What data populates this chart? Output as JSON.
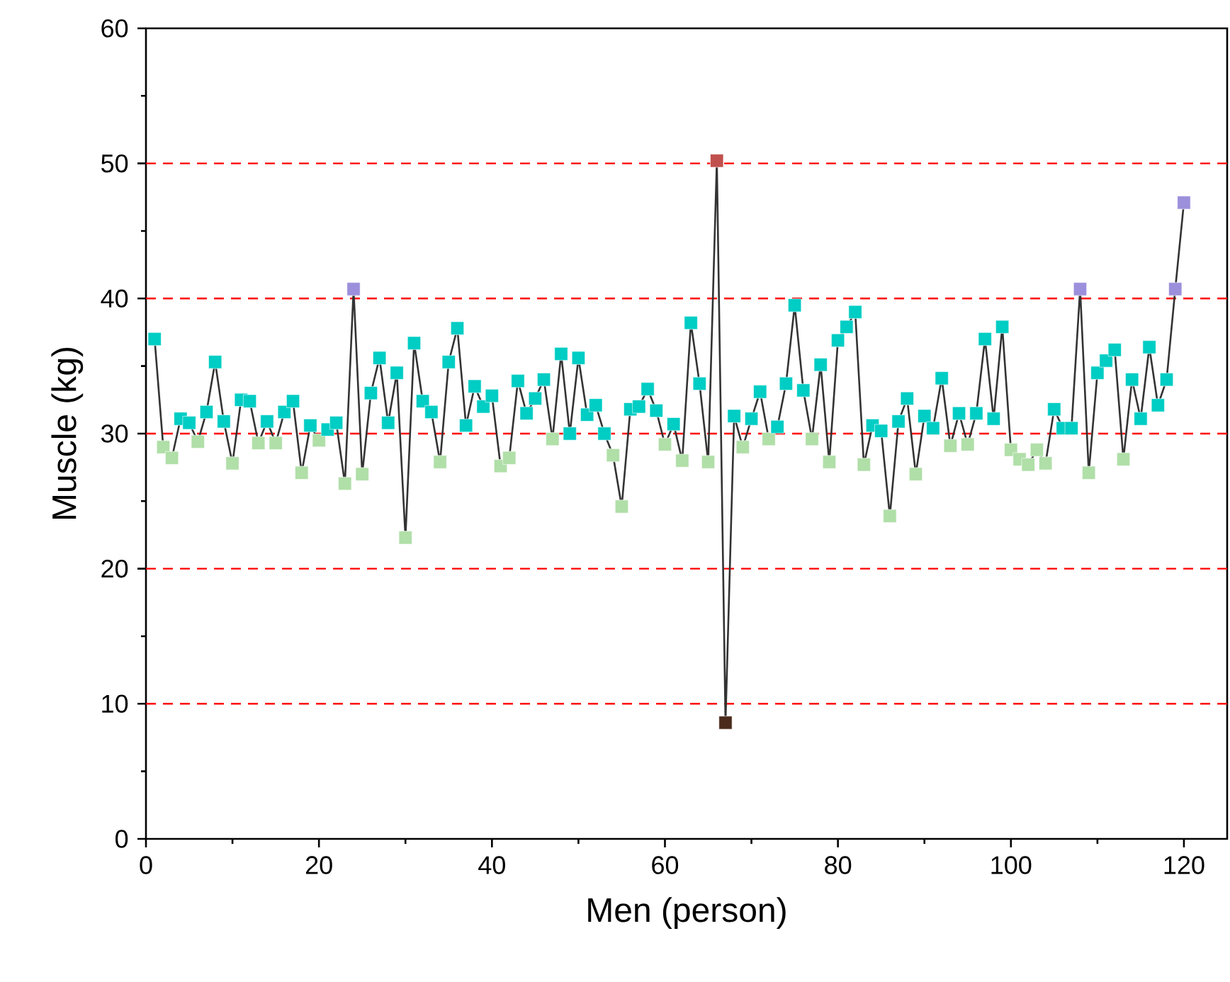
{
  "chart_data": {
    "type": "line",
    "xlabel": "Men (person)",
    "ylabel": "Muscle (kg)",
    "x": [
      1,
      2,
      3,
      4,
      5,
      6,
      7,
      8,
      9,
      10,
      11,
      12,
      13,
      14,
      15,
      16,
      17,
      18,
      19,
      20,
      21,
      22,
      23,
      24,
      25,
      26,
      27,
      28,
      29,
      30,
      31,
      32,
      33,
      34,
      35,
      36,
      37,
      38,
      39,
      40,
      41,
      42,
      43,
      44,
      45,
      46,
      47,
      48,
      49,
      50,
      51,
      52,
      53,
      54,
      55,
      56,
      57,
      58,
      59,
      60,
      61,
      62,
      63,
      64,
      65,
      66,
      67,
      68,
      69,
      70,
      71,
      72,
      73,
      74,
      75,
      76,
      77,
      78,
      79,
      80,
      81,
      82,
      83,
      84,
      85,
      86,
      87,
      88,
      89,
      90,
      91,
      92,
      93,
      94,
      95,
      96,
      97,
      98,
      99,
      100,
      101,
      102,
      103,
      104,
      105,
      106,
      107,
      108,
      109,
      110,
      111,
      112,
      113,
      114,
      115,
      116,
      117,
      118,
      119,
      120
    ],
    "series": [
      {
        "color": "#333333",
        "values": [
          37.0,
          29.0,
          28.2,
          31.1,
          30.8,
          29.4,
          31.6,
          35.3,
          30.9,
          27.8,
          32.5,
          32.4,
          29.3,
          30.9,
          29.3,
          31.6,
          32.4,
          27.1,
          30.6,
          29.5,
          30.3,
          30.8,
          26.3,
          40.7,
          27.0,
          33.0,
          35.6,
          30.8,
          34.5,
          22.3,
          36.7,
          32.4,
          31.6,
          27.9,
          35.3,
          37.8,
          30.6,
          33.5,
          32.0,
          32.8,
          27.6,
          28.2,
          33.9,
          31.5,
          32.6,
          34.0,
          29.6,
          35.9,
          30.0,
          35.6,
          31.4,
          32.1,
          30.0,
          28.4,
          24.6,
          31.8,
          32.0,
          33.3,
          31.7,
          29.2,
          30.7,
          28.0,
          38.2,
          33.7,
          27.9,
          50.2,
          8.6,
          31.3,
          29.0,
          31.1,
          33.1,
          29.6,
          30.5,
          33.7,
          39.5,
          33.2,
          29.6,
          35.1,
          27.9,
          36.9,
          37.9,
          39.0,
          27.7,
          30.6,
          30.2,
          23.9,
          30.9,
          32.6,
          27.0,
          31.3,
          30.4,
          34.1,
          29.1,
          31.5,
          29.2,
          31.5,
          37.0,
          31.1,
          37.9,
          28.8,
          28.1,
          27.7,
          28.8,
          27.8,
          31.8,
          30.4,
          30.4,
          40.7,
          27.1,
          34.5,
          35.4,
          36.2,
          28.1,
          34.0,
          31.1,
          36.4,
          32.1,
          34.0,
          40.7,
          47.1
        ],
        "colors": [
          "#00cdc4",
          "#b0dfa8",
          "#b0dfa8",
          "#00cdc4",
          "#00cdc4",
          "#b0dfa8",
          "#00cdc4",
          "#00cdc4",
          "#00cdc4",
          "#b0dfa8",
          "#00cdc4",
          "#00cdc4",
          "#b0dfa8",
          "#00cdc4",
          "#b0dfa8",
          "#00cdc4",
          "#00cdc4",
          "#b0dfa8",
          "#00cdc4",
          "#b0dfa8",
          "#00cdc4",
          "#00cdc4",
          "#b0dfa8",
          "#9c8fdb",
          "#b0dfa8",
          "#00cdc4",
          "#00cdc4",
          "#00cdc4",
          "#00cdc4",
          "#b0dfa8",
          "#00cdc4",
          "#00cdc4",
          "#00cdc4",
          "#b0dfa8",
          "#00cdc4",
          "#00cdc4",
          "#00cdc4",
          "#00cdc4",
          "#00cdc4",
          "#00cdc4",
          "#b0dfa8",
          "#b0dfa8",
          "#00cdc4",
          "#00cdc4",
          "#00cdc4",
          "#00cdc4",
          "#b0dfa8",
          "#00cdc4",
          "#00cdc4",
          "#00cdc4",
          "#00cdc4",
          "#00cdc4",
          "#00cdc4",
          "#b0dfa8",
          "#b0dfa8",
          "#00cdc4",
          "#00cdc4",
          "#00cdc4",
          "#00cdc4",
          "#b0dfa8",
          "#00cdc4",
          "#b0dfa8",
          "#00cdc4",
          "#00cdc4",
          "#b0dfa8",
          "#c0504d",
          "#4a2a1a",
          "#00cdc4",
          "#b0dfa8",
          "#00cdc4",
          "#00cdc4",
          "#b0dfa8",
          "#00cdc4",
          "#00cdc4",
          "#00cdc4",
          "#00cdc4",
          "#b0dfa8",
          "#00cdc4",
          "#b0dfa8",
          "#00cdc4",
          "#00cdc4",
          "#00cdc4",
          "#b0dfa8",
          "#00cdc4",
          "#00cdc4",
          "#b0dfa8",
          "#00cdc4",
          "#00cdc4",
          "#b0dfa8",
          "#00cdc4",
          "#00cdc4",
          "#00cdc4",
          "#b0dfa8",
          "#00cdc4",
          "#b0dfa8",
          "#00cdc4",
          "#00cdc4",
          "#00cdc4",
          "#00cdc4",
          "#b0dfa8",
          "#b0dfa8",
          "#b0dfa8",
          "#b0dfa8",
          "#b0dfa8",
          "#00cdc4",
          "#00cdc4",
          "#00cdc4",
          "#9c8fdb",
          "#b0dfa8",
          "#00cdc4",
          "#00cdc4",
          "#00cdc4",
          "#b0dfa8",
          "#00cdc4",
          "#00cdc4",
          "#00cdc4",
          "#00cdc4",
          "#00cdc4",
          "#9c8fdb",
          "#9c8fdb"
        ]
      }
    ],
    "xlim": [
      0,
      125
    ],
    "ylim": [
      0,
      60
    ],
    "xticks": [
      0,
      20,
      40,
      60,
      80,
      100,
      120
    ],
    "yticks": [
      0,
      10,
      20,
      30,
      40,
      50,
      60
    ],
    "ref_lines": [
      {
        "axis": "y",
        "value": 10,
        "color": "#ff0000",
        "line_style": "dashed"
      },
      {
        "axis": "y",
        "value": 20,
        "color": "#ff0000",
        "line_style": "dashed"
      },
      {
        "axis": "y",
        "value": 30,
        "color": "#ff0000",
        "line_style": "dashed"
      },
      {
        "axis": "y",
        "value": 40,
        "color": "#ff0000",
        "line_style": "dashed"
      },
      {
        "axis": "y",
        "value": 50,
        "color": "#ff0000",
        "line_style": "dashed"
      }
    ],
    "marker": "square",
    "line_style": "solid"
  }
}
